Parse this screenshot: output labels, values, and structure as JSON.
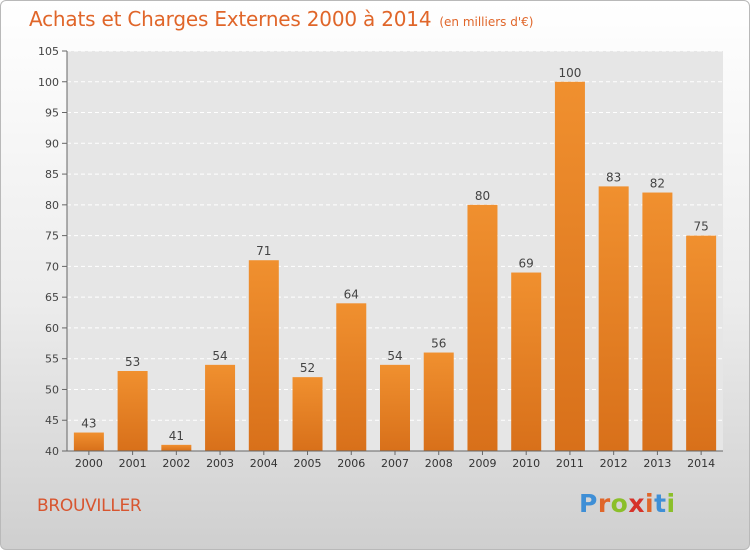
{
  "header": {
    "title": "Achats et Charges Externes 2000 à 2014",
    "unit": "(en milliers d'€)"
  },
  "footer": {
    "commune": "BROUVILLER",
    "logo_letters": [
      "P",
      "r",
      "o",
      "x",
      "i",
      "t",
      "i"
    ],
    "logo_colors": [
      "#3f8fd6",
      "#e0662a",
      "#8bbf2a",
      "#d6332a",
      "#e0662a",
      "#3f8fd6",
      "#8bbf2a"
    ]
  },
  "chart_data": {
    "type": "bar",
    "categories": [
      "2000",
      "2001",
      "2002",
      "2003",
      "2004",
      "2005",
      "2006",
      "2007",
      "2008",
      "2009",
      "2010",
      "2011",
      "2012",
      "2013",
      "2014"
    ],
    "values": [
      43,
      53,
      41,
      54,
      71,
      52,
      64,
      54,
      56,
      80,
      69,
      100,
      83,
      82,
      75
    ],
    "title": "Achats et Charges Externes 2000 à 2014",
    "ylim": [
      40,
      105
    ],
    "yticks": [
      40,
      45,
      50,
      55,
      60,
      65,
      70,
      75,
      80,
      85,
      90,
      95,
      100,
      105
    ],
    "grid": true,
    "bar_color": "#f0902f",
    "bar_color_dark": "#d8701a"
  }
}
